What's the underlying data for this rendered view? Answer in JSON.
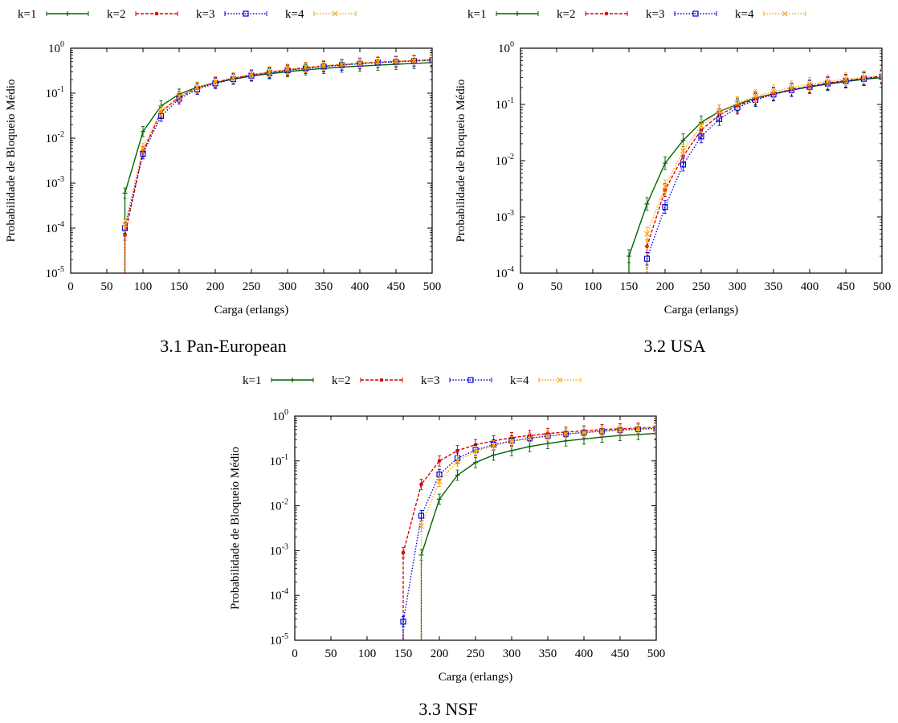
{
  "colors": {
    "k1": "#006400",
    "k2": "#dd0000",
    "k3": "#0000dd",
    "k4": "#ffa500"
  },
  "chart_data": [
    {
      "type": "line",
      "caption": "3.1 Pan-European",
      "xlabel": "Carga (erlangs)",
      "ylabel": "Probabilidade de Bloqueio Médio",
      "xlim": [
        0,
        500
      ],
      "ylim": [
        1e-05,
        1
      ],
      "yscale": "log",
      "legend_position": "top",
      "xticks": [
        "0",
        "50",
        "100",
        "150",
        "200",
        "250",
        "300",
        "350",
        "400",
        "450",
        "500"
      ],
      "yticks": [
        {
          "base": "10",
          "exp": "-5"
        },
        {
          "base": "10",
          "exp": "-4"
        },
        {
          "base": "10",
          "exp": "-3"
        },
        {
          "base": "10",
          "exp": "-2"
        },
        {
          "base": "10",
          "exp": "-1"
        },
        {
          "base": "10",
          "exp": "0"
        }
      ],
      "x": [
        75,
        100,
        125,
        150,
        175,
        200,
        225,
        250,
        275,
        300,
        325,
        350,
        375,
        400,
        425,
        450,
        475,
        500
      ],
      "series": [
        {
          "name": "k=1",
          "color_key": "k1",
          "marker": "plus",
          "dash": "",
          "values": [
            0.0006,
            0.014,
            0.052,
            0.095,
            0.135,
            0.17,
            0.205,
            0.24,
            0.27,
            0.3,
            0.33,
            0.355,
            0.38,
            0.4,
            0.42,
            0.44,
            0.46,
            0.48
          ]
        },
        {
          "name": "k=2",
          "color_key": "k2",
          "marker": "dot",
          "dash": "4,2",
          "values": [
            7e-05,
            0.005,
            0.038,
            0.082,
            0.13,
            0.175,
            0.215,
            0.255,
            0.29,
            0.33,
            0.37,
            0.4,
            0.43,
            0.46,
            0.49,
            0.51,
            0.53,
            0.55
          ]
        },
        {
          "name": "k=3",
          "color_key": "k3",
          "marker": "square",
          "dash": "1.5,2",
          "values": [
            0.0001,
            0.0045,
            0.031,
            0.075,
            0.122,
            0.165,
            0.205,
            0.245,
            0.28,
            0.32,
            0.355,
            0.39,
            0.42,
            0.45,
            0.48,
            0.5,
            0.52,
            0.54
          ]
        },
        {
          "name": "k=4",
          "color_key": "k4",
          "marker": "cross",
          "dash": "1.5,2",
          "values": [
            0.00012,
            0.006,
            0.04,
            0.085,
            0.133,
            0.18,
            0.22,
            0.26,
            0.3,
            0.34,
            0.375,
            0.41,
            0.44,
            0.47,
            0.5,
            0.52,
            0.54,
            0.56
          ]
        }
      ]
    },
    {
      "type": "line",
      "caption": "3.2 USA",
      "xlabel": "Carga (erlangs)",
      "ylabel": "Probabilidade de Bloqueio Médio",
      "xlim": [
        0,
        500
      ],
      "ylim": [
        0.0001,
        1
      ],
      "yscale": "log",
      "legend_position": "top",
      "xticks": [
        "0",
        "50",
        "100",
        "150",
        "200",
        "250",
        "300",
        "350",
        "400",
        "450",
        "500"
      ],
      "yticks": [
        {
          "base": "10",
          "exp": "-4"
        },
        {
          "base": "10",
          "exp": "-3"
        },
        {
          "base": "10",
          "exp": "-2"
        },
        {
          "base": "10",
          "exp": "-1"
        },
        {
          "base": "10",
          "exp": "0"
        }
      ],
      "x": [
        150,
        175,
        200,
        225,
        250,
        275,
        300,
        325,
        350,
        375,
        400,
        425,
        450,
        475,
        500
      ],
      "series": [
        {
          "name": "k=1",
          "color_key": "k1",
          "marker": "plus",
          "dash": "",
          "values": [
            0.0002,
            0.0017,
            0.009,
            0.023,
            0.048,
            0.075,
            0.1,
            0.13,
            0.155,
            0.18,
            0.205,
            0.23,
            0.255,
            0.28,
            0.3
          ]
        },
        {
          "name": "k=2",
          "color_key": "k2",
          "marker": "dot",
          "dash": "4,2",
          "values": [
            null,
            0.0003,
            0.003,
            0.012,
            0.035,
            0.065,
            0.095,
            0.125,
            0.155,
            0.185,
            0.21,
            0.24,
            0.265,
            0.29,
            0.32
          ]
        },
        {
          "name": "k=3",
          "color_key": "k3",
          "marker": "square",
          "dash": "1.5,2",
          "values": [
            null,
            0.00018,
            0.0015,
            0.0085,
            0.027,
            0.055,
            0.088,
            0.12,
            0.15,
            0.18,
            0.205,
            0.235,
            0.26,
            0.285,
            0.31
          ]
        },
        {
          "name": "k=4",
          "color_key": "k4",
          "marker": "cross",
          "dash": "1.5,2",
          "values": [
            null,
            0.0005,
            0.0035,
            0.015,
            0.042,
            0.075,
            0.105,
            0.14,
            0.17,
            0.2,
            0.23,
            0.255,
            0.28,
            0.305,
            0.33
          ]
        }
      ]
    },
    {
      "type": "line",
      "caption": "3.3 NSF",
      "xlabel": "Carga (erlangs)",
      "ylabel": "Probabilidade de Bloqueio Médio",
      "xlim": [
        0,
        500
      ],
      "ylim": [
        1e-05,
        1
      ],
      "yscale": "log",
      "legend_position": "top",
      "xticks": [
        "0",
        "50",
        "100",
        "150",
        "200",
        "250",
        "300",
        "350",
        "400",
        "450",
        "500"
      ],
      "yticks": [
        {
          "base": "10",
          "exp": "-5"
        },
        {
          "base": "10",
          "exp": "-4"
        },
        {
          "base": "10",
          "exp": "-3"
        },
        {
          "base": "10",
          "exp": "-2"
        },
        {
          "base": "10",
          "exp": "-1"
        },
        {
          "base": "10",
          "exp": "0"
        }
      ],
      "x": [
        150,
        175,
        200,
        225,
        250,
        275,
        300,
        325,
        350,
        375,
        400,
        425,
        450,
        475,
        500
      ],
      "series": [
        {
          "name": "k=1",
          "color_key": "k1",
          "marker": "plus",
          "dash": "",
          "values": [
            null,
            0.0008,
            0.014,
            0.048,
            0.092,
            0.135,
            0.17,
            0.21,
            0.245,
            0.28,
            0.31,
            0.34,
            0.37,
            0.39,
            0.41
          ]
        },
        {
          "name": "k=2",
          "color_key": "k2",
          "marker": "dot",
          "dash": "4,2",
          "values": [
            0.0009,
            0.03,
            0.1,
            0.17,
            0.23,
            0.28,
            0.33,
            0.37,
            0.41,
            0.44,
            0.47,
            0.5,
            0.52,
            0.54,
            0.56
          ]
        },
        {
          "name": "k=3",
          "color_key": "k3",
          "marker": "square",
          "dash": "1.5,2",
          "values": [
            2.6e-05,
            0.006,
            0.05,
            0.115,
            0.175,
            0.23,
            0.28,
            0.32,
            0.36,
            0.4,
            0.43,
            0.46,
            0.49,
            0.51,
            0.53
          ]
        },
        {
          "name": "k=4",
          "color_key": "k4",
          "marker": "cross",
          "dash": "1.5,2",
          "values": [
            null,
            0.0035,
            0.035,
            0.1,
            0.165,
            0.22,
            0.27,
            0.32,
            0.36,
            0.4,
            0.43,
            0.46,
            0.49,
            0.52,
            0.54
          ]
        }
      ]
    }
  ]
}
